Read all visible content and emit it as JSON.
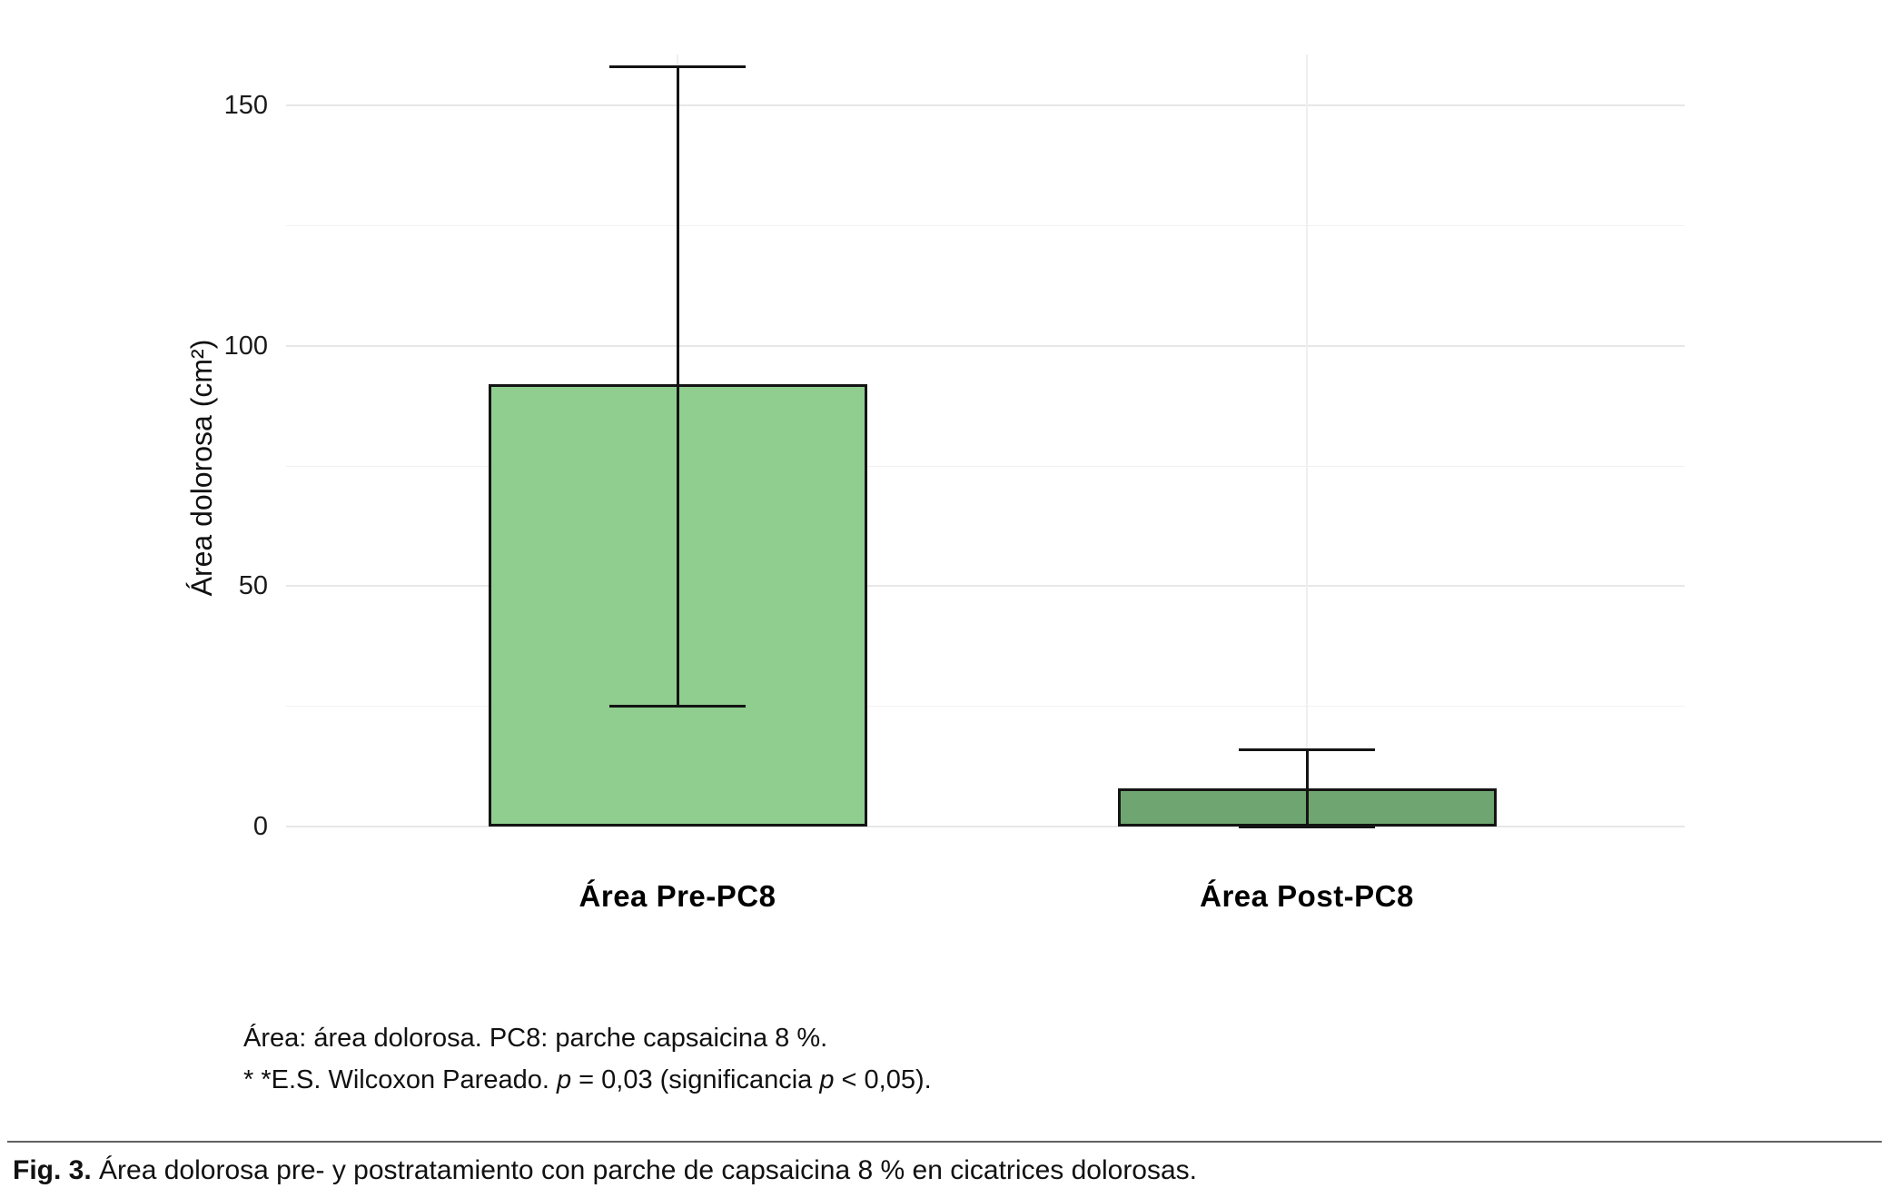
{
  "chart_data": {
    "type": "bar",
    "title": "",
    "categories": [
      "Área Pre-PC8",
      "Área Post-PC8"
    ],
    "values": [
      92,
      8
    ],
    "error_bars": [
      {
        "low": 25,
        "high": 158
      },
      {
        "low": 0,
        "high": 16
      }
    ],
    "bar_fill_colors": [
      "#8FCE8F",
      "#6FA571"
    ],
    "bar_border_color": "#141414",
    "xlabel": "",
    "ylabel": "Área dolorosa (cm²)",
    "ylim": [
      0,
      160
    ],
    "yticks_major": [
      0,
      50,
      100,
      150
    ],
    "yticks_minor": [
      25,
      75,
      125
    ],
    "grid": "horizontal major and minor gridlines, light gray, white background",
    "legend": "none"
  },
  "footnote": {
    "line1": "Área: área dolorosa. PC8: parche capsaicina 8 %.",
    "line2_segments": [
      {
        "text": "* *E.S. Wilcoxon Pareado. ",
        "italic": false
      },
      {
        "text": "p",
        "italic": true
      },
      {
        "text": " = 0,03 (significancia ",
        "italic": false
      },
      {
        "text": "p",
        "italic": true
      },
      {
        "text": " < 0,05).",
        "italic": false
      }
    ]
  },
  "caption": {
    "label": "Fig. 3.",
    "text": "Área dolorosa pre- y postratamiento con parche de capsaicina 8 % en cicatrices dolorosas."
  }
}
